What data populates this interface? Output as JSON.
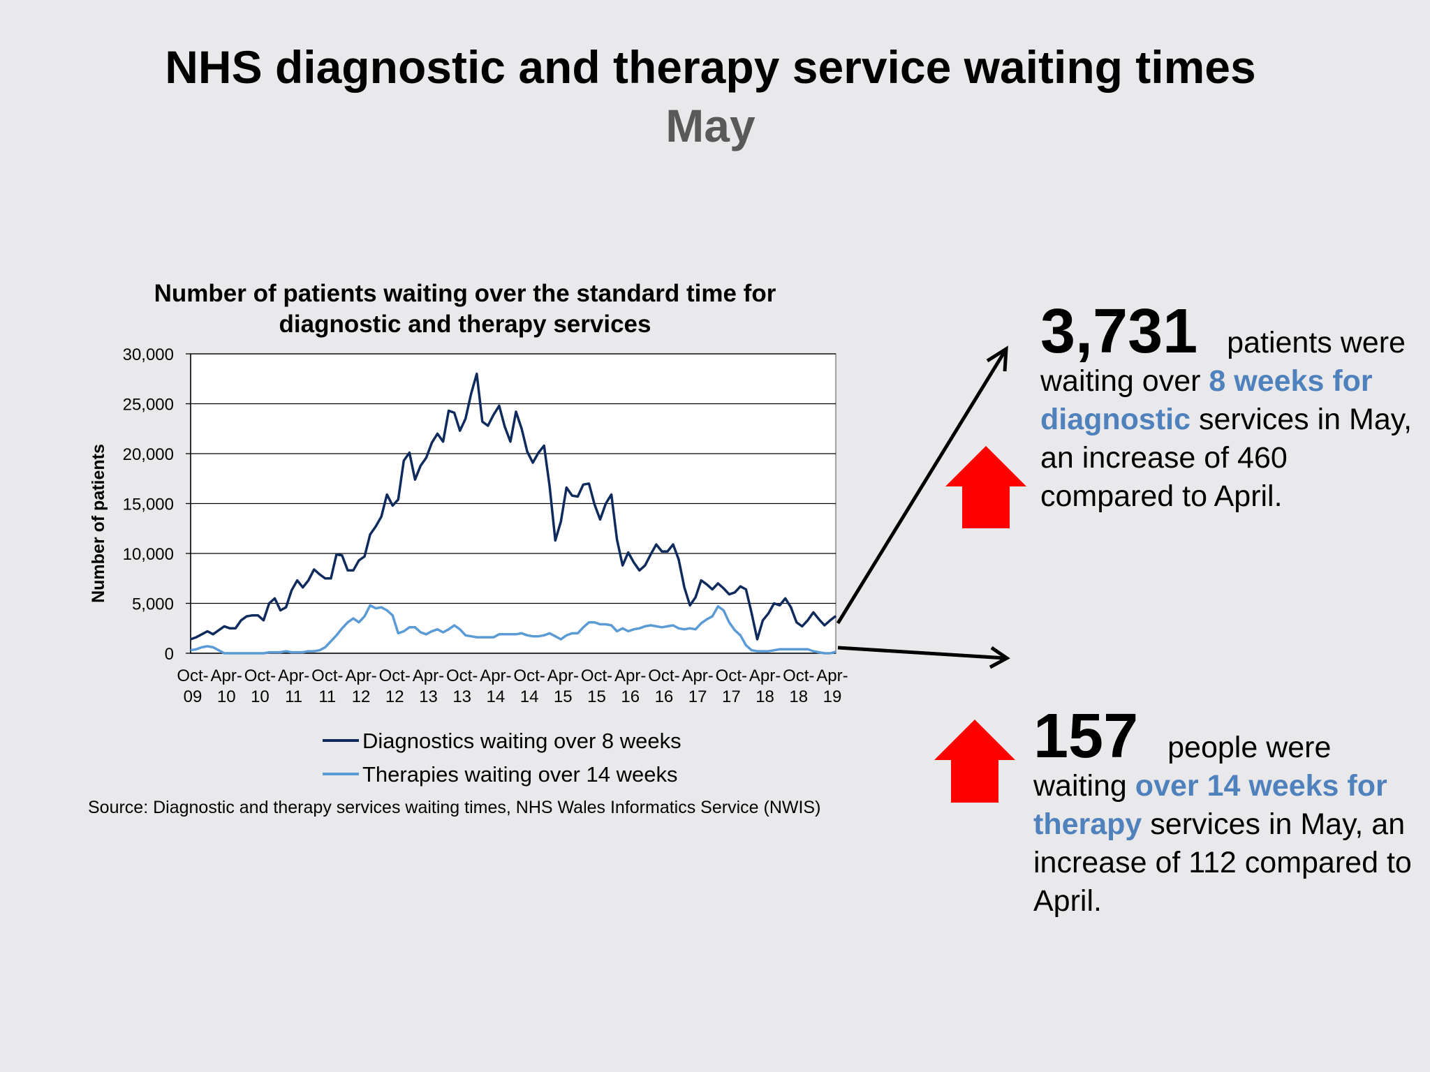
{
  "header": {
    "title": "NHS diagnostic and therapy service waiting times",
    "subtitle": "May"
  },
  "chart_data": {
    "type": "line",
    "title_line1": "Number of patients waiting over the standard time for",
    "title_line2": "diagnostic and therapy services",
    "ylabel": "Number of patients",
    "xlabel": "",
    "ylim": [
      0,
      30000
    ],
    "yticks": [
      0,
      5000,
      10000,
      15000,
      20000,
      25000,
      30000
    ],
    "ytick_labels": [
      "0",
      "5,000",
      "10,000",
      "15,000",
      "20,000",
      "25,000",
      "30,000"
    ],
    "x_ticks": [
      {
        "top": "Oct-",
        "bottom": "09"
      },
      {
        "top": "Apr-",
        "bottom": "10"
      },
      {
        "top": "Oct-",
        "bottom": "10"
      },
      {
        "top": "Apr-",
        "bottom": "11"
      },
      {
        "top": "Oct-",
        "bottom": "11"
      },
      {
        "top": "Apr-",
        "bottom": "12"
      },
      {
        "top": "Oct-",
        "bottom": "12"
      },
      {
        "top": "Apr-",
        "bottom": "13"
      },
      {
        "top": "Oct-",
        "bottom": "13"
      },
      {
        "top": "Apr-",
        "bottom": "14"
      },
      {
        "top": "Oct-",
        "bottom": "14"
      },
      {
        "top": "Apr-",
        "bottom": "15"
      },
      {
        "top": "Oct-",
        "bottom": "15"
      },
      {
        "top": "Apr-",
        "bottom": "16"
      },
      {
        "top": "Oct-",
        "bottom": "16"
      },
      {
        "top": "Apr-",
        "bottom": "17"
      },
      {
        "top": "Oct-",
        "bottom": "17"
      },
      {
        "top": "Apr-",
        "bottom": "18"
      },
      {
        "top": "Oct-",
        "bottom": "18"
      },
      {
        "top": "Apr-",
        "bottom": "19"
      }
    ],
    "grid": true,
    "legend_position": "bottom",
    "series": [
      {
        "name": "Diagnostics waiting over 8 weeks",
        "color": "#0f2a5c",
        "values": [
          1400,
          1600,
          1900,
          2200,
          1900,
          2300,
          2700,
          2500,
          2500,
          3300,
          3700,
          3800,
          3800,
          3300,
          5000,
          5500,
          4300,
          4600,
          6300,
          7300,
          6600,
          7300,
          8400,
          7900,
          7500,
          7500,
          9900,
          9800,
          8300,
          8300,
          9300,
          9700,
          11900,
          12700,
          13700,
          15900,
          14800,
          15400,
          19300,
          20100,
          17400,
          18800,
          19600,
          21100,
          22000,
          21200,
          24300,
          24100,
          22300,
          23500,
          26000,
          28000,
          23200,
          22800,
          23900,
          24800,
          22700,
          21200,
          24200,
          22500,
          20200,
          19100,
          20100,
          20800,
          16700,
          11300,
          13200,
          16600,
          15800,
          15700,
          16900,
          17000,
          14900,
          13400,
          15000,
          15900,
          11400,
          8800,
          10100,
          9100,
          8300,
          8800,
          9900,
          10900,
          10200,
          10200,
          10900,
          9400,
          6600,
          4800,
          5600,
          7300,
          6900,
          6400,
          7000,
          6500,
          5900,
          6100,
          6700,
          6400,
          4000,
          1400,
          3300,
          4000,
          5000,
          4800,
          5500,
          4600,
          3100,
          2700,
          3300,
          4100,
          3400,
          2800,
          3300,
          3731
        ]
      },
      {
        "name": "Therapies waiting over 14 weeks",
        "color": "#5b9bd5",
        "values": [
          300,
          400,
          600,
          700,
          600,
          300,
          0,
          0,
          0,
          0,
          0,
          0,
          0,
          0,
          100,
          100,
          100,
          200,
          100,
          100,
          100,
          200,
          200,
          300,
          600,
          1200,
          1800,
          2500,
          3100,
          3500,
          3100,
          3700,
          4800,
          4500,
          4600,
          4300,
          3800,
          2000,
          2200,
          2600,
          2600,
          2100,
          1900,
          2200,
          2400,
          2100,
          2400,
          2800,
          2400,
          1800,
          1700,
          1600,
          1600,
          1600,
          1600,
          1900,
          1900,
          1900,
          1900,
          2000,
          1800,
          1700,
          1700,
          1800,
          2000,
          1700,
          1400,
          1800,
          2000,
          2000,
          2600,
          3100,
          3100,
          2900,
          2900,
          2800,
          2200,
          2500,
          2200,
          2400,
          2500,
          2700,
          2800,
          2700,
          2600,
          2700,
          2800,
          2500,
          2400,
          2500,
          2400,
          3000,
          3400,
          3700,
          4700,
          4300,
          3100,
          2300,
          1800,
          800,
          300,
          200,
          200,
          200,
          300,
          400,
          400,
          400,
          400,
          400,
          400,
          200,
          100,
          0,
          0,
          157
        ]
      }
    ]
  },
  "source": "Source: Diagnostic and therapy services waiting times, NHS Wales Informatics Service (NWIS)",
  "callouts": {
    "diagnostic": {
      "number": "3,731",
      "text1": " patients were waiting over ",
      "highlight": "8 weeks for diagnostic",
      "text2": " services in May, an increase of 460 compared to April."
    },
    "therapy": {
      "number": "157",
      "text1": " people were waiting ",
      "highlight": "over 14 weeks for therapy",
      "text2": " services in May, an increase of 112 compared to April."
    }
  },
  "colors": {
    "arrow_up": "#ff0000",
    "highlight": "#4f81bd",
    "subtitle": "#595959"
  }
}
